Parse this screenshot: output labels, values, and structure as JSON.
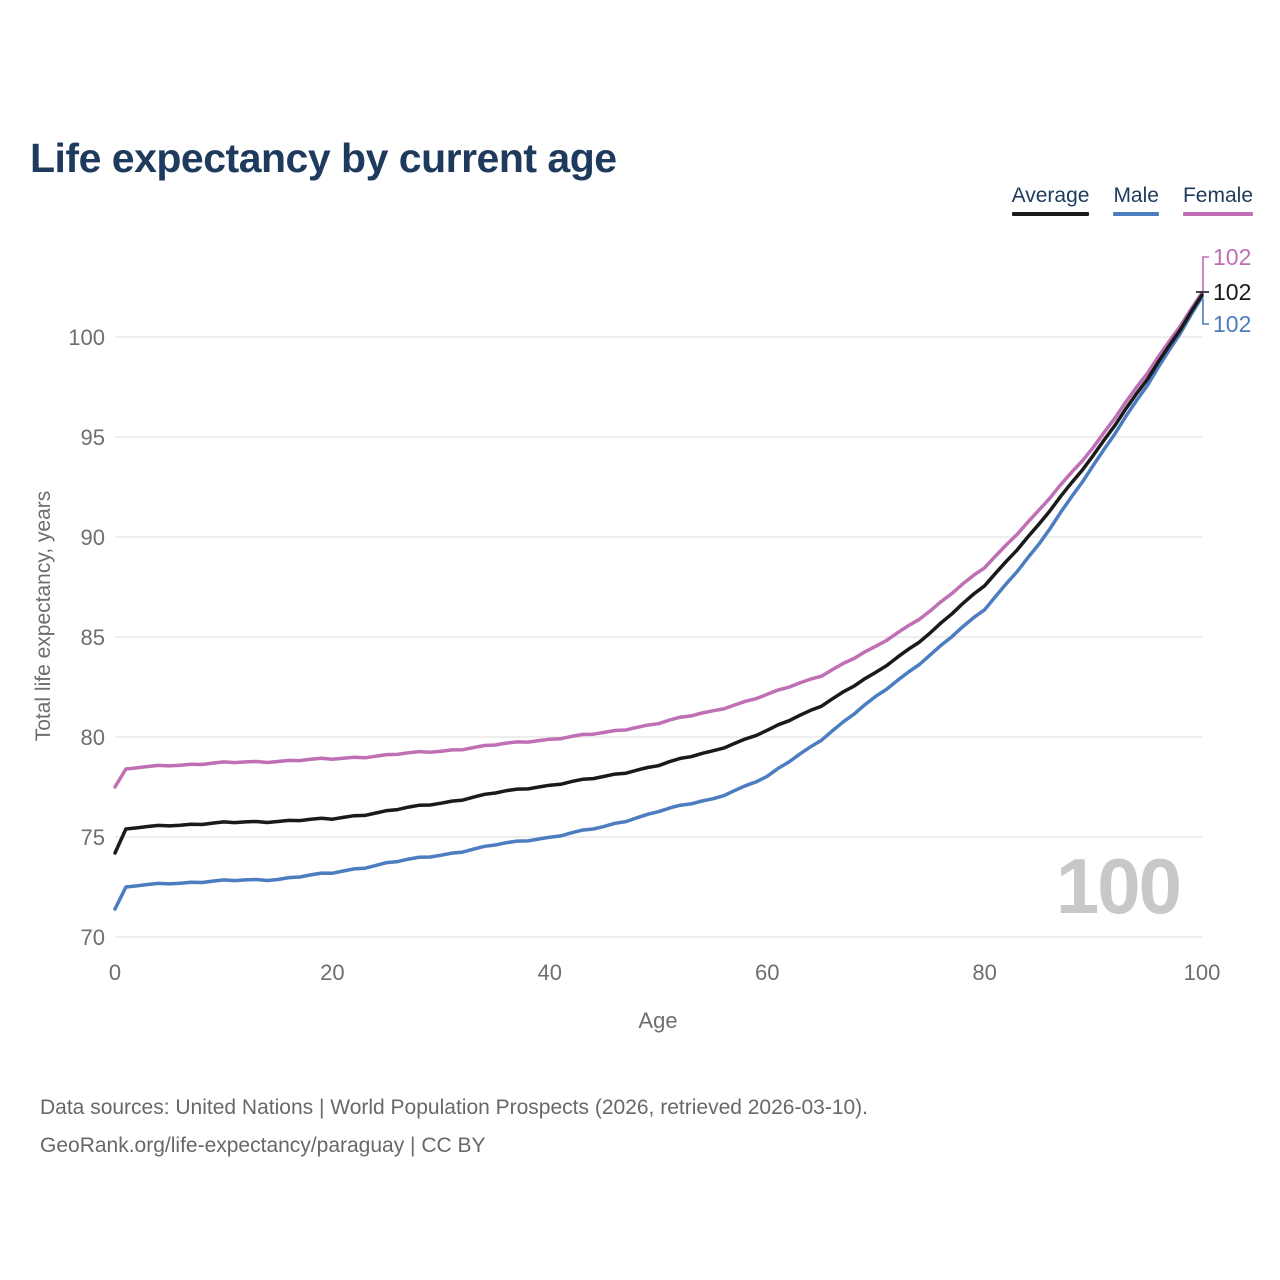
{
  "title": "Life expectancy by current age",
  "legend": [
    {
      "label": "Average",
      "color": "#1a1a1a"
    },
    {
      "label": "Male",
      "color": "#4d7dc1"
    },
    {
      "label": "Female",
      "color": "#bf6fb4"
    }
  ],
  "watermark": "100",
  "footer": {
    "line1": "Data sources: United Nations | World Population Prospects (2026, retrieved 2026-03-10).",
    "line2": "GeoRank.org/life-expectancy/paraguay | CC BY"
  },
  "chart_data": {
    "type": "line",
    "title": "Life expectancy by current age",
    "xlabel": "Age",
    "ylabel": "Total life expectancy, years",
    "xlim": [
      0,
      100
    ],
    "ylim": [
      70,
      103
    ],
    "xticks": [
      0,
      20,
      40,
      60,
      80,
      100
    ],
    "yticks": [
      70,
      75,
      80,
      85,
      90,
      95,
      100
    ],
    "grid": "horizontal",
    "legend_position": "top-right",
    "series": [
      {
        "name": "Female",
        "color": "#bf6fb4",
        "end_label": "102",
        "points": [
          [
            0,
            77.5
          ],
          [
            1,
            78.4
          ],
          [
            5,
            78.6
          ],
          [
            10,
            78.7
          ],
          [
            15,
            78.8
          ],
          [
            20,
            78.9
          ],
          [
            25,
            79.1
          ],
          [
            30,
            79.3
          ],
          [
            35,
            79.6
          ],
          [
            40,
            79.9
          ],
          [
            45,
            80.2
          ],
          [
            50,
            80.7
          ],
          [
            55,
            81.3
          ],
          [
            60,
            82.1
          ],
          [
            65,
            83.1
          ],
          [
            70,
            84.5
          ],
          [
            75,
            86.3
          ],
          [
            80,
            88.5
          ],
          [
            85,
            91.3
          ],
          [
            90,
            94.5
          ],
          [
            95,
            98.2
          ],
          [
            100,
            102.2
          ]
        ]
      },
      {
        "name": "Male",
        "color": "#4d7dc1",
        "end_label": "102",
        "points": [
          [
            0,
            71.4
          ],
          [
            1,
            72.5
          ],
          [
            5,
            72.7
          ],
          [
            10,
            72.8
          ],
          [
            15,
            72.9
          ],
          [
            20,
            73.2
          ],
          [
            25,
            73.7
          ],
          [
            30,
            74.1
          ],
          [
            35,
            74.6
          ],
          [
            40,
            75.0
          ],
          [
            45,
            75.5
          ],
          [
            50,
            76.3
          ],
          [
            55,
            76.9
          ],
          [
            60,
            78.0
          ],
          [
            65,
            79.9
          ],
          [
            70,
            82.0
          ],
          [
            75,
            84.1
          ],
          [
            80,
            86.4
          ],
          [
            85,
            89.6
          ],
          [
            90,
            93.6
          ],
          [
            95,
            97.6
          ],
          [
            100,
            102.0
          ]
        ]
      },
      {
        "name": "Average",
        "color": "#1a1a1a",
        "end_label": "102",
        "points": [
          [
            0,
            74.2
          ],
          [
            1,
            75.4
          ],
          [
            5,
            75.6
          ],
          [
            10,
            75.7
          ],
          [
            15,
            75.8
          ],
          [
            20,
            75.9
          ],
          [
            25,
            76.3
          ],
          [
            30,
            76.7
          ],
          [
            35,
            77.2
          ],
          [
            40,
            77.6
          ],
          [
            45,
            78.0
          ],
          [
            50,
            78.6
          ],
          [
            55,
            79.3
          ],
          [
            60,
            80.3
          ],
          [
            65,
            81.6
          ],
          [
            70,
            83.2
          ],
          [
            75,
            85.2
          ],
          [
            80,
            87.6
          ],
          [
            85,
            90.6
          ],
          [
            90,
            94.1
          ],
          [
            95,
            97.9
          ],
          [
            100,
            102.1
          ]
        ]
      }
    ]
  }
}
